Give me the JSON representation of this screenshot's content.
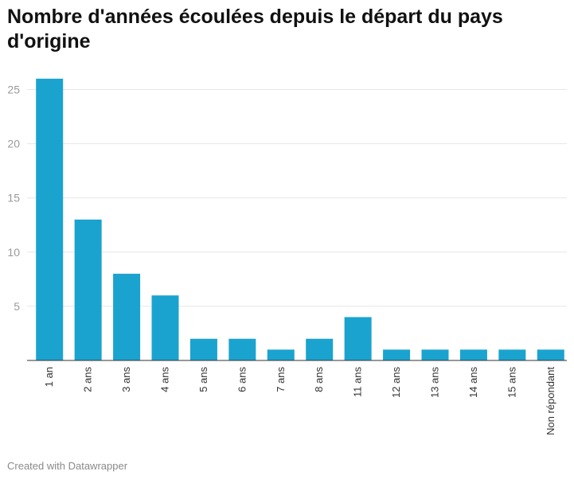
{
  "title": "Nombre d'années écoulées depuis le départ du pays d'origine",
  "footer": "Created with Datawrapper",
  "colors": {
    "bar": "#1aa3cf",
    "grid": "#e6e6e6",
    "axis": "#333333",
    "tick_text": "#9a9a9a"
  },
  "chart_data": {
    "type": "bar",
    "title": "Nombre d'années écoulées depuis le départ du pays d'origine",
    "xlabel": "",
    "ylabel": "",
    "categories": [
      "1 an",
      "2 ans",
      "3 ans",
      "4 ans",
      "5 ans",
      "6 ans",
      "7 ans",
      "8 ans",
      "11 ans",
      "12 ans",
      "13 ans",
      "14 ans",
      "15 ans",
      "Non répondant"
    ],
    "values": [
      26,
      13,
      8,
      6,
      2,
      2,
      1,
      2,
      4,
      1,
      1,
      1,
      1,
      1
    ],
    "ylim": [
      0,
      27
    ],
    "yticks": [
      5,
      10,
      15,
      20,
      25
    ],
    "grid": true,
    "x_label_rotation": "vertical",
    "legend": "none"
  }
}
